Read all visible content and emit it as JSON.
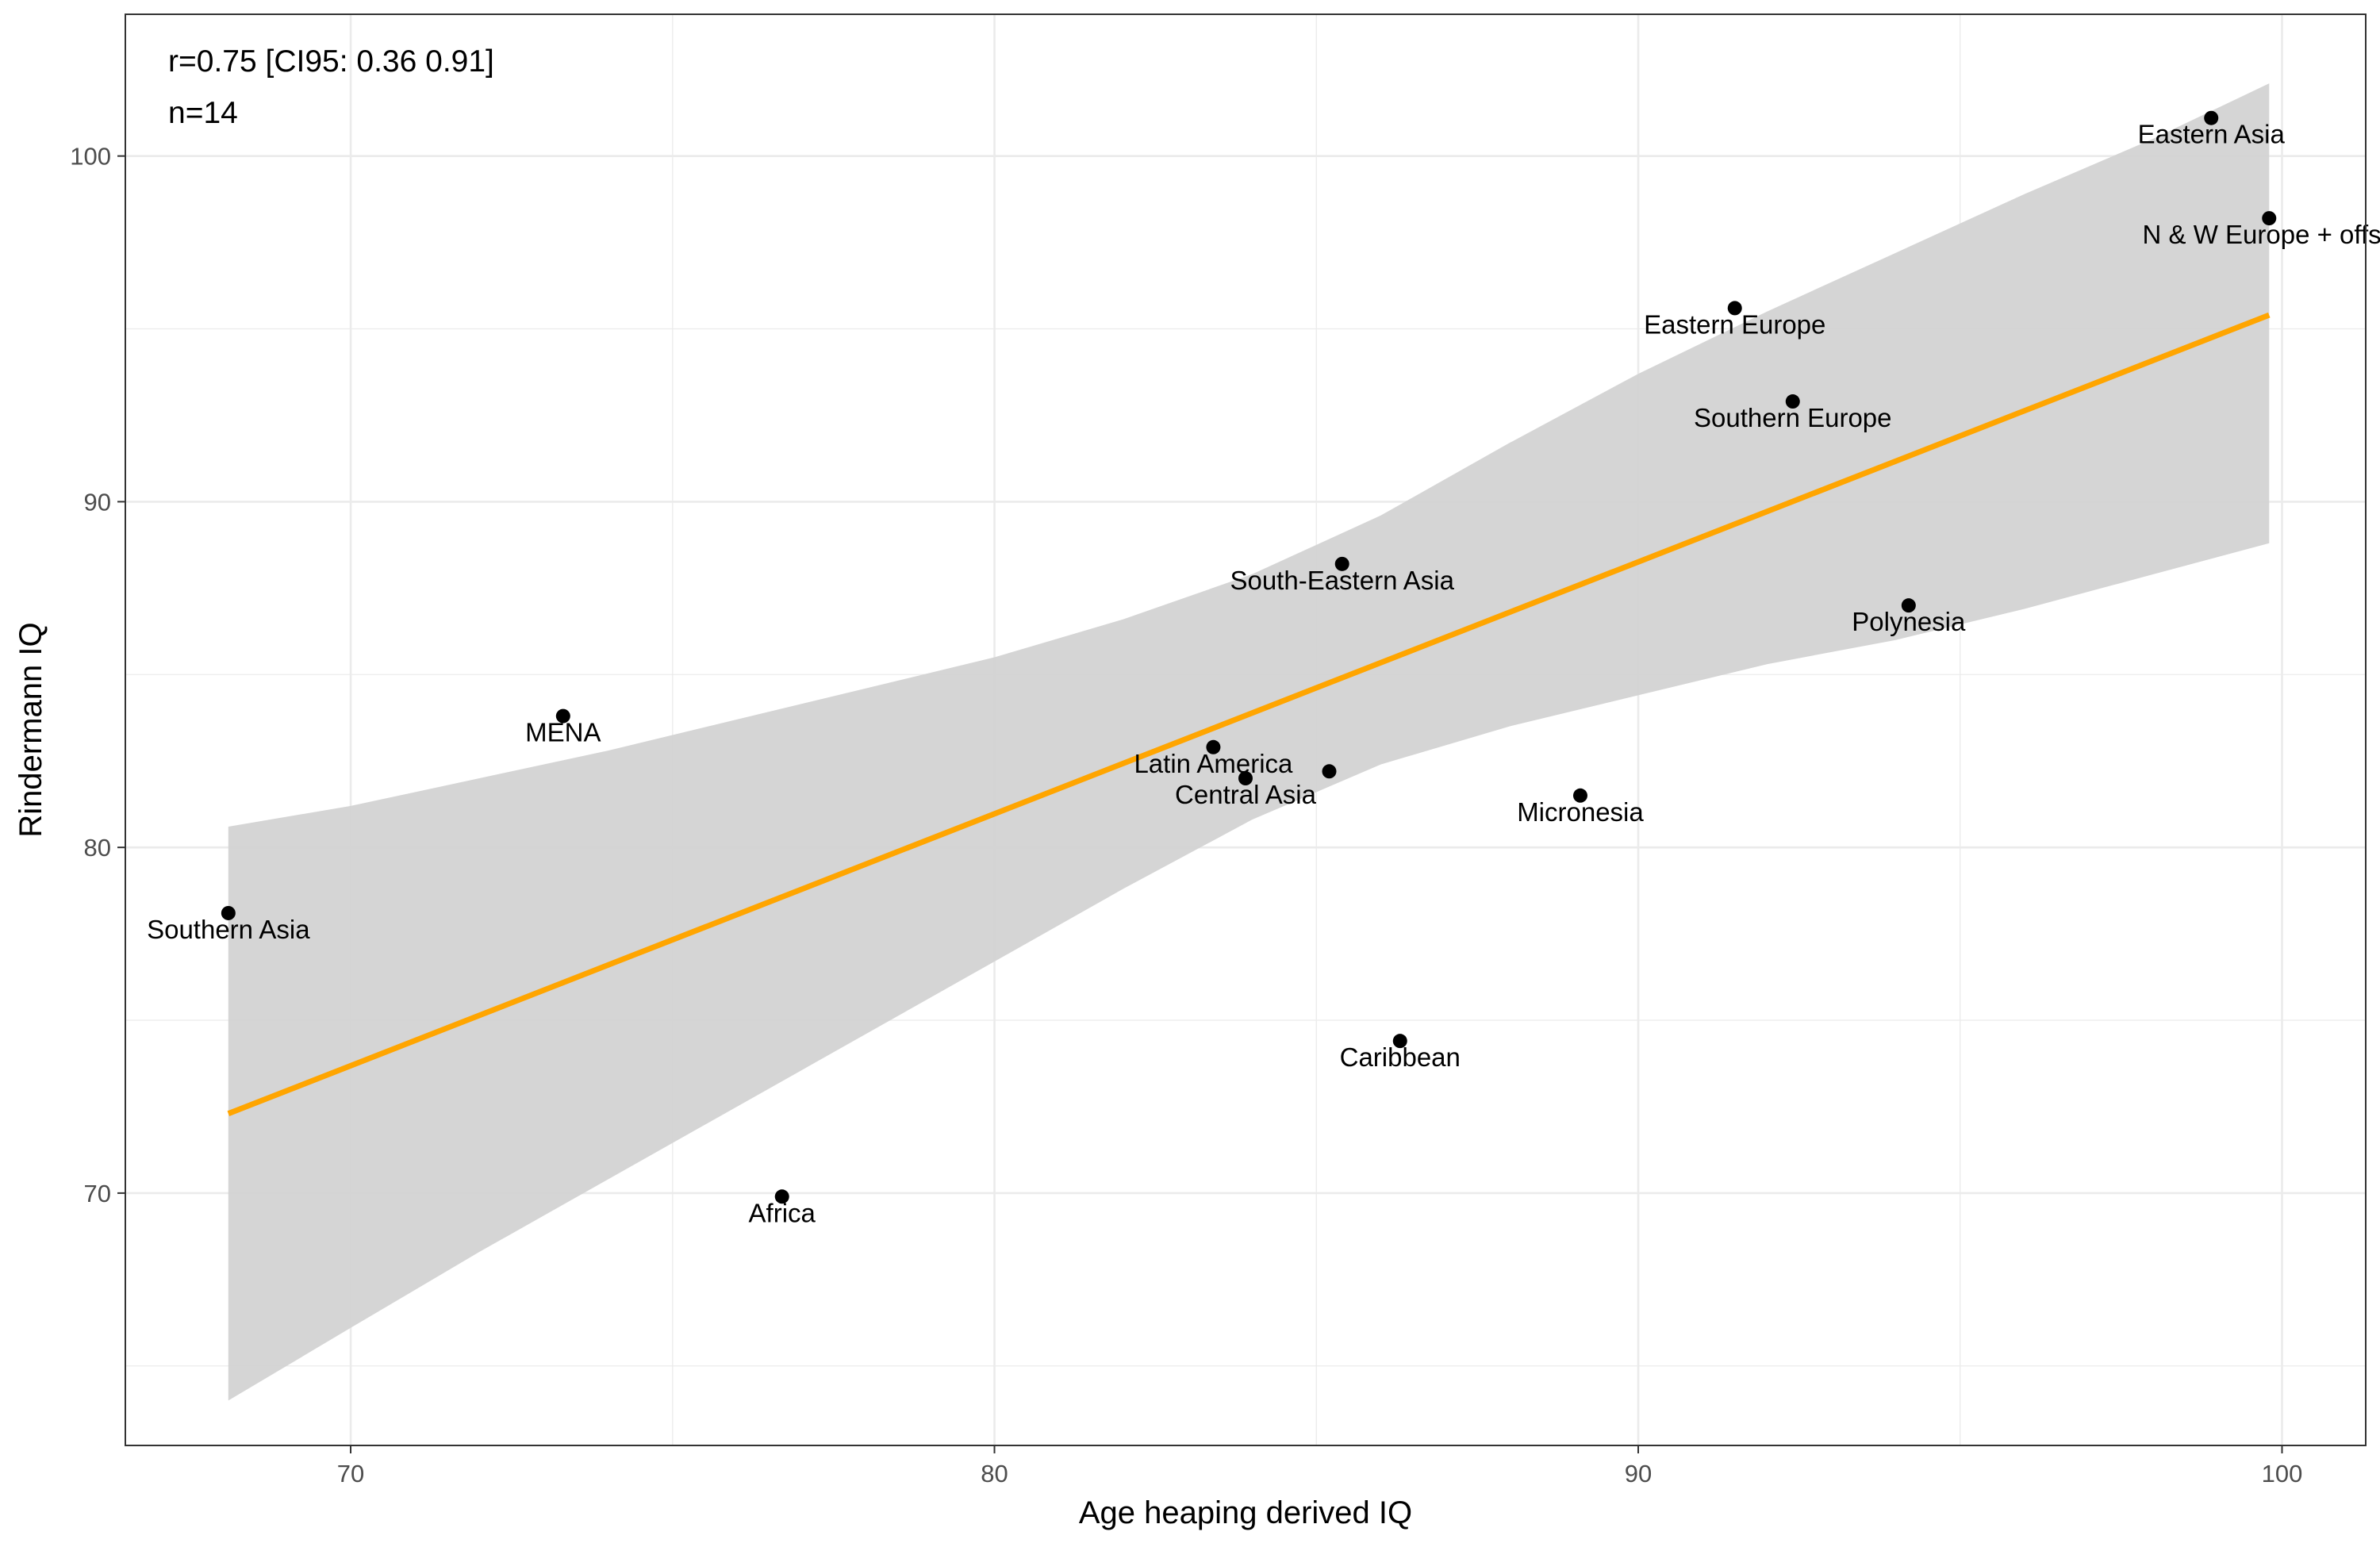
{
  "chart_data": {
    "type": "scatter",
    "title": "",
    "xlabel": "Age heaping derived IQ",
    "ylabel": "Rindermann IQ",
    "xlim": [
      66.5,
      101.3
    ],
    "ylim": [
      62.7,
      104.1
    ],
    "xticks": [
      70,
      80,
      90,
      100
    ],
    "yticks": [
      70,
      80,
      90,
      100
    ],
    "grid": true,
    "annotations": [
      "r=0.75 [CI95: 0.36 0.91]",
      "n=14"
    ],
    "points": [
      {
        "label": "Southern Asia",
        "x": 68.1,
        "y": 78.1
      },
      {
        "label": "MENA",
        "x": 73.3,
        "y": 83.8
      },
      {
        "label": "Africa",
        "x": 76.7,
        "y": 69.9
      },
      {
        "label": "Latin America",
        "x": 83.4,
        "y": 82.9
      },
      {
        "label": "Central Asia",
        "x": 83.9,
        "y": 82.0
      },
      {
        "label": "South-Eastern Asia",
        "x": 85.4,
        "y": 88.2
      },
      {
        "label": "",
        "x": 85.2,
        "y": 82.2
      },
      {
        "label": "Caribbean",
        "x": 86.3,
        "y": 74.4
      },
      {
        "label": "Micronesia",
        "x": 89.1,
        "y": 81.5
      },
      {
        "label": "Eastern Europe",
        "x": 91.5,
        "y": 95.6
      },
      {
        "label": "Southern Europe",
        "x": 92.4,
        "y": 92.9
      },
      {
        "label": "Polynesia",
        "x": 94.2,
        "y": 87.0
      },
      {
        "label": "Eastern Asia",
        "x": 98.9,
        "y": 101.1
      },
      {
        "label": "N & W Europe + offsh",
        "x": 99.8,
        "y": 98.2
      }
    ],
    "fit_line": {
      "x": [
        68.1,
        99.8
      ],
      "y": [
        72.3,
        95.4
      ],
      "color": "#ffa500"
    },
    "confidence_band": {
      "x": [
        68.1,
        70,
        72,
        74,
        76,
        78,
        80,
        82,
        84,
        86,
        88,
        90,
        92,
        94,
        96,
        98,
        99.8
      ],
      "lower": [
        64.0,
        66.1,
        68.3,
        70.4,
        72.5,
        74.6,
        76.7,
        78.8,
        80.8,
        82.4,
        83.5,
        84.4,
        85.3,
        86.0,
        86.9,
        87.9,
        88.8
      ],
      "upper": [
        80.6,
        81.2,
        82.0,
        82.8,
        83.7,
        84.6,
        85.5,
        86.6,
        87.9,
        89.6,
        91.7,
        93.7,
        95.5,
        97.2,
        98.9,
        100.5,
        102.1
      ],
      "color": "#d3d3d3"
    },
    "colors": {
      "points": "#000000",
      "panel_border": "#333333",
      "grid": "#ebebeb"
    }
  }
}
